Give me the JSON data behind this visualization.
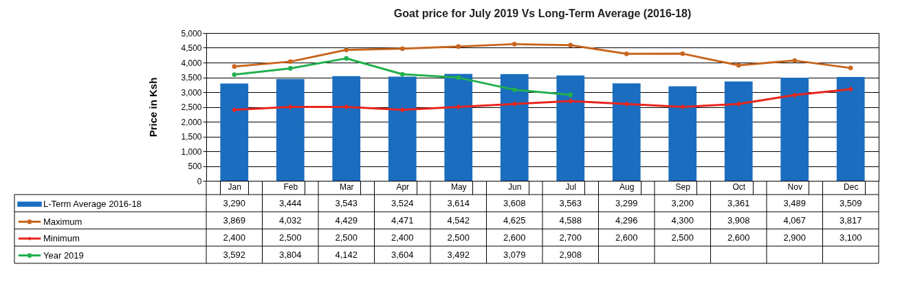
{
  "chart_data": {
    "type": "bar",
    "title": "Goat price for July  2019 Vs Long-Term Average (2016-18)",
    "ylabel": "Price in Ksh",
    "categories": [
      "Jan",
      "Feb",
      "Mar",
      "Apr",
      "May",
      "Jun",
      "Jul",
      "Aug",
      "Sep",
      "Oct",
      "Nov",
      "Dec"
    ],
    "ylim": [
      0,
      5000
    ],
    "yticks": [
      0,
      {
        "value": 500,
        "label": "500"
      },
      {
        "value": 1000,
        "label": "1,000"
      },
      {
        "value": 1500,
        "label": "1,500"
      },
      {
        "value": 2000,
        "label": "2,000"
      },
      {
        "value": 2500,
        "label": "2,500"
      },
      {
        "value": 3000,
        "label": "3,000"
      },
      {
        "value": 3500,
        "label": "3,500"
      },
      {
        "value": 4000,
        "label": "4,000"
      },
      {
        "value": 4500,
        "label": "4,500"
      },
      {
        "value": 5000,
        "label": "5,000"
      }
    ],
    "grid": "y",
    "legend": "bottom left",
    "series": [
      {
        "name": "L-Term Average  2016-18",
        "color": "#1a6dbf",
        "values": [
          3290,
          3444,
          3543,
          3524,
          3614,
          3608,
          3563,
          3299,
          3200,
          3361,
          3489,
          3509
        ],
        "value_labels": [
          "3,290",
          "3,444",
          "3,543",
          "3,524",
          "3,614",
          "3,608",
          "3,563",
          "3,299",
          "3,200",
          "3,361",
          "3,489",
          "3,509"
        ]
      },
      {
        "name": "Maximum",
        "type": "line",
        "color": "#c8661f",
        "marker": "circle",
        "values": [
          3869,
          4032,
          4429,
          4471,
          4542,
          4625,
          4588,
          4296,
          4300,
          3908,
          4067,
          3817
        ],
        "value_labels": [
          "3,869",
          "4,032",
          "4,429",
          "4,471",
          "4,542",
          "4,625",
          "4,588",
          "4,296",
          "4,300",
          "3,908",
          "4,067",
          "3,817"
        ]
      },
      {
        "name": "Minimum",
        "type": "line",
        "color": "#e8251d",
        "marker": "cross",
        "values": [
          2400,
          2500,
          2500,
          2400,
          2500,
          2600,
          2700,
          2600,
          2500,
          2600,
          2900,
          3100
        ],
        "value_labels": [
          "2,400",
          "2,500",
          "2,500",
          "2,400",
          "2,500",
          "2,600",
          "2,700",
          "2,600",
          "2,500",
          "2,600",
          "2,900",
          "3,100"
        ]
      },
      {
        "name": "Year 2019",
        "type": "line",
        "color": "#22b04c",
        "marker": "circle",
        "values": [
          3592,
          3804,
          4142,
          3604,
          3492,
          3079,
          2908,
          null,
          null,
          null,
          null,
          null
        ],
        "value_labels": [
          "3,592",
          "3,804",
          "4,142",
          "3,604",
          "3,492",
          "3,079",
          "2,908",
          null,
          null,
          null,
          null,
          null
        ]
      }
    ]
  }
}
